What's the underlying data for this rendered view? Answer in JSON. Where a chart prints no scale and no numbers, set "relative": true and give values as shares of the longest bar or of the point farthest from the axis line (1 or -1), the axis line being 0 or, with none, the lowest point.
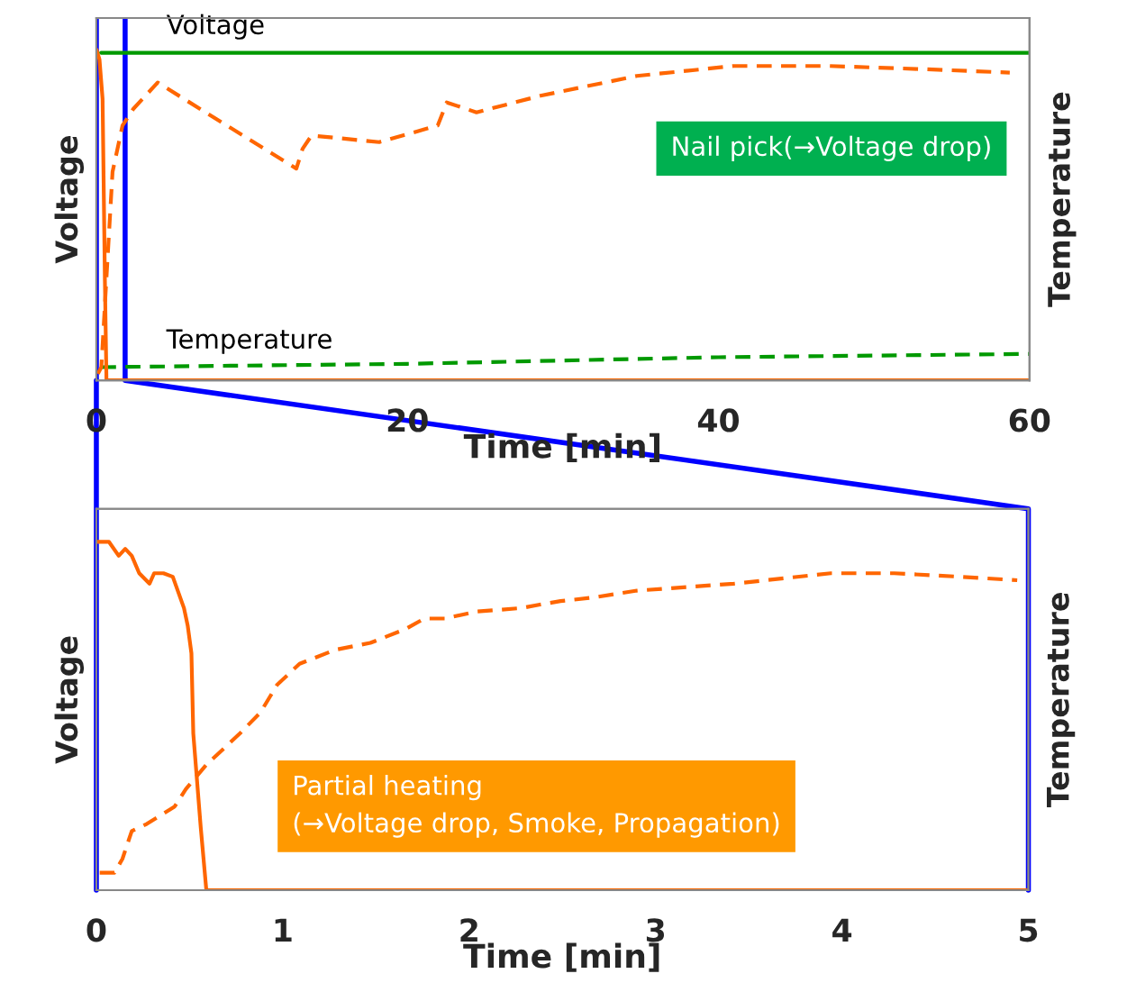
{
  "chart_data": [
    {
      "type": "line",
      "relative": true,
      "xlabel": "Time [min]",
      "ylabel": "Voltage",
      "y2label": "Temperature",
      "xlim": [
        0,
        60
      ],
      "xticks": [
        0,
        20,
        40,
        60
      ],
      "tick_labels": "x",
      "grid": false,
      "legend": false,
      "series": [
        {
          "name": "Voltage",
          "color": "#009900",
          "line_style": "solid",
          "x": [
            0.3,
            30,
            60
          ],
          "values": [
            0.99,
            0.99,
            0.99
          ]
        },
        {
          "name": "Temperature",
          "color": "#009900",
          "line_style": "dashed",
          "x": [
            0.3,
            20,
            40,
            60
          ],
          "values": [
            0.04,
            0.05,
            0.07,
            0.08
          ]
        },
        {
          "color": "#ff6600",
          "line_style": "solid",
          "x": [
            0,
            0.2,
            0.4,
            0.55,
            0.65,
            30,
            60
          ],
          "values": [
            1,
            0.97,
            0.85,
            0.3,
            0,
            0,
            0
          ]
        },
        {
          "color": "#ff6600",
          "line_style": "dashed",
          "x": [
            0.1,
            0.32,
            1.04,
            1.68,
            2.37,
            3.94,
            12.86,
            13.26,
            13.84,
            18.19,
            21.95,
            22.53,
            24.44,
            28.55,
            34.75,
            40.95,
            47.14,
            53.4,
            58.73
          ],
          "values": [
            0.02,
            0.04,
            0.63,
            0.77,
            0.82,
            0.9,
            0.64,
            0.7,
            0.74,
            0.72,
            0.77,
            0.84,
            0.81,
            0.86,
            0.92,
            0.95,
            0.95,
            0.94,
            0.93
          ]
        }
      ],
      "ref_lines": [
        {
          "axis": "x",
          "value": 0,
          "color": "#0000ff"
        },
        {
          "axis": "x",
          "value": 1.85,
          "color": "#0000ff"
        }
      ],
      "annotations": [
        "Nail pick(→Voltage drop)"
      ]
    },
    {
      "type": "line",
      "relative": true,
      "xlabel": "Time [min]",
      "ylabel": "Voltage",
      "y2label": "Temperature",
      "xlim": [
        0,
        5
      ],
      "xticks": [
        0,
        1,
        2,
        3,
        4,
        5
      ],
      "tick_labels": "x",
      "grid": false,
      "legend": false,
      "series": [
        {
          "color": "#ff6600",
          "line_style": "solid",
          "x": [
            0,
            0.018,
            0.068,
            0.12,
            0.155,
            0.19,
            0.23,
            0.285,
            0.31,
            0.36,
            0.41,
            0.47,
            0.49,
            0.51,
            0.52,
            0.56,
            0.59,
            1,
            3,
            5
          ],
          "values": [
            1,
            1,
            1,
            0.96,
            0.98,
            0.96,
            0.91,
            0.88,
            0.91,
            0.91,
            0.9,
            0.81,
            0.76,
            0.68,
            0.45,
            0.18,
            0,
            0,
            0,
            0
          ]
        },
        {
          "color": "#ff6600",
          "line_style": "dashed",
          "x": [
            0.018,
            0.097,
            0.14,
            0.19,
            0.27,
            0.42,
            0.48,
            0.59,
            0.77,
            0.88,
            0.97,
            1.09,
            1.28,
            1.47,
            1.66,
            1.76,
            1.87,
            2.04,
            2.28,
            2.38,
            2.49,
            2.66,
            2.9,
            3.42,
            3.94,
            4.28,
            4.63,
            4.94
          ],
          "values": [
            0.05,
            0.05,
            0.09,
            0.17,
            0.19,
            0.24,
            0.29,
            0.36,
            0.45,
            0.51,
            0.59,
            0.65,
            0.69,
            0.71,
            0.75,
            0.78,
            0.78,
            0.8,
            0.81,
            0.82,
            0.83,
            0.84,
            0.86,
            0.88,
            0.91,
            0.91,
            0.9,
            0.89
          ]
        }
      ],
      "annotations": [
        "Partial heating\n(→Voltage drop, Smoke, Propagation)"
      ]
    }
  ]
}
